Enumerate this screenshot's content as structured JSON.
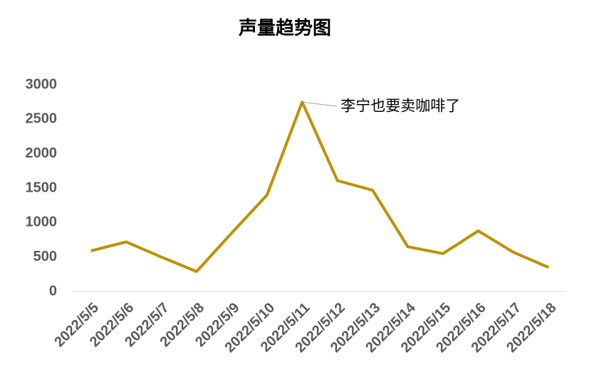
{
  "chart_data": {
    "type": "line",
    "title": "声量趋势图",
    "categories": [
      "2022/5/5",
      "2022/5/6",
      "2022/5/7",
      "2022/5/8",
      "2022/5/9",
      "2022/5/10",
      "2022/5/11",
      "2022/5/12",
      "2022/5/13",
      "2022/5/14",
      "2022/5/15",
      "2022/5/16",
      "2022/5/17",
      "2022/5/18"
    ],
    "series": [
      {
        "name": "声量",
        "color": "#bf9000",
        "values": [
          590,
          720,
          500,
          290,
          850,
          1400,
          2750,
          1610,
          1470,
          650,
          550,
          880,
          570,
          350
        ]
      }
    ],
    "ylim": [
      0,
      3000
    ],
    "yticks": [
      0,
      500,
      1000,
      1500,
      2000,
      2500,
      3000
    ],
    "grid": false,
    "annotations": [
      {
        "x": "2022/5/11",
        "text": "李宁也要卖咖啡了"
      }
    ]
  }
}
